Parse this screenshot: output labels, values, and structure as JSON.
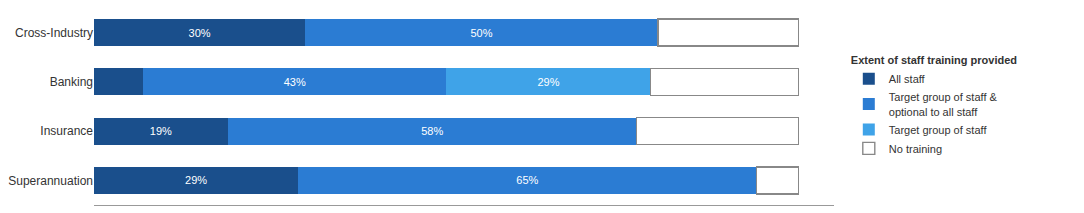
{
  "chart_data": {
    "type": "bar",
    "orientation": "horizontal",
    "stacked": true,
    "categories": [
      "Cross-Industry",
      "Banking",
      "Insurance",
      "Superannuation"
    ],
    "series": [
      {
        "name": "All staff",
        "color": "#1a4f8c",
        "values": [
          30,
          7,
          19,
          29
        ],
        "value_labels": [
          "30%",
          null,
          "19%",
          "29%"
        ]
      },
      {
        "name": "Target group of staff &\noptional to all staff",
        "color": "#2b7cd3",
        "values": [
          50,
          43,
          58,
          65
        ],
        "value_labels": [
          "50%",
          "43%",
          "58%",
          "65%"
        ]
      },
      {
        "name": "Target group of staff",
        "color": "#3fa3e8",
        "values": [
          0,
          29,
          0,
          0
        ],
        "value_labels": [
          null,
          "29%",
          null,
          null
        ]
      },
      {
        "name": "No training",
        "values": [
          20,
          21,
          23,
          6
        ]
      }
    ],
    "xlim": [
      0,
      105
    ],
    "xticks": [],
    "grid": false,
    "legend": "right",
    "legend_title": "Extent of staff training provided",
    "tick_labels": "y",
    "data_labels": true
  }
}
